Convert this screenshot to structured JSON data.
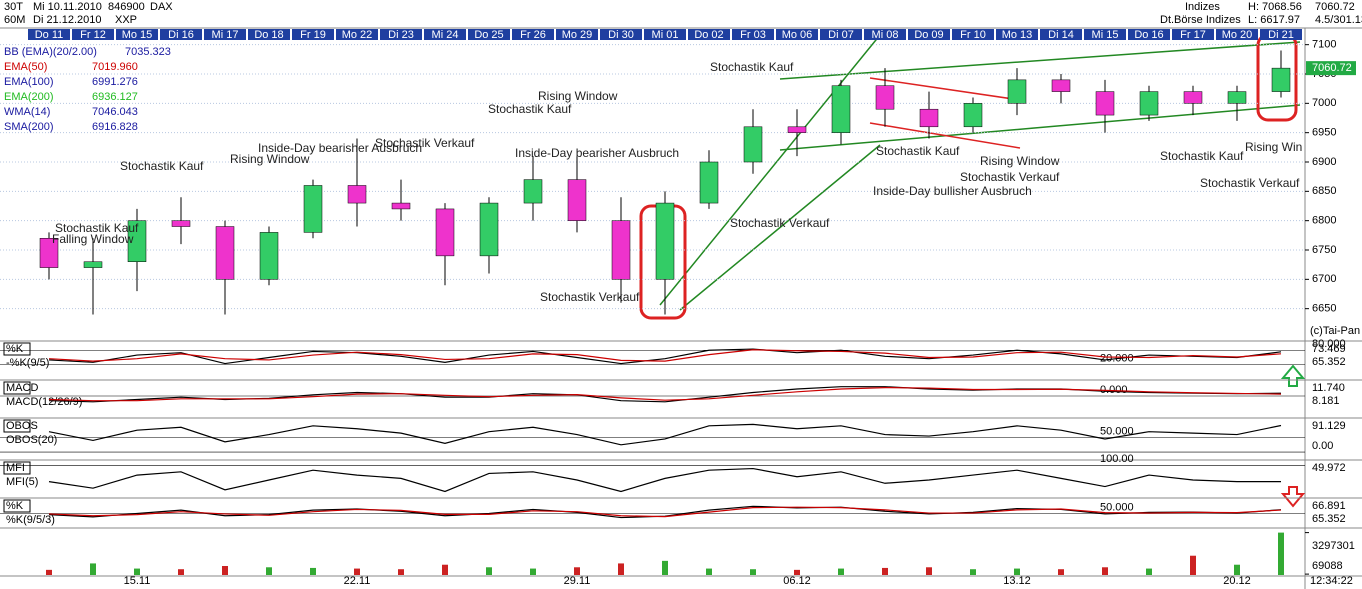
{
  "header": {
    "left": [
      "30T",
      "Mi 10.11.2010",
      "846900",
      "DAX",
      "60M",
      "Di 21.12.2010",
      "XXP"
    ],
    "right": [
      "Indizes",
      "Dt.Börse Indizes",
      "H: 7068.56",
      "L: 6617.97",
      "7060.72",
      "4.5/301.13"
    ],
    "legend": [
      {
        "name": "BB (EMA)(20/2.00)",
        "value": "7035.323",
        "color": "#1a1aa0"
      },
      {
        "name": "EMA(50)",
        "value": "7019.960",
        "color": "#cc0000"
      },
      {
        "name": "EMA(100)",
        "value": "6991.276",
        "color": "#1a1aa0"
      },
      {
        "name": "EMA(200)",
        "value": "6936.127",
        "color": "#22bb22"
      },
      {
        "name": "WMA(14)",
        "value": "7046.043",
        "color": "#1a1aa0"
      },
      {
        "name": "SMA(200)",
        "value": "6916.828",
        "color": "#1a1aa0"
      }
    ],
    "copyright": "(c)Tai-Pan",
    "time": "12:34:22"
  },
  "annotations": [
    "Falling Window",
    "Stochastik Kauf",
    "Stochastik Kauf",
    "Rising Window",
    "Inside-Day bearisher Ausbruch",
    "Stochastik Verkauf",
    "Rising Window",
    "Stochastik Kauf",
    "Inside-Day bearisher Ausbruch",
    "Stochastik Verkauf",
    "Stochastik Kauf",
    "Stochastik Verkauf",
    "Stochastik Kauf",
    "Inside-Day bullisher Ausbruch",
    "Rising Window",
    "Stochastik Verkauf",
    "Stochastik Kauf",
    "Stochastik Verkauf",
    "Rising Win"
  ],
  "chart_data": [
    {
      "type": "candlestick",
      "categories": [
        "Do 11",
        "Fr 12",
        "Mo 15",
        "Di 16",
        "Mi 17",
        "Do 18",
        "Fr 19",
        "Mo 22",
        "Di 23",
        "Mi 24",
        "Do 25",
        "Fr 26",
        "Mo 29",
        "Di 30",
        "Mi 01",
        "Do 02",
        "Fr 03",
        "Mo 06",
        "Di 07",
        "Mi 08",
        "Do 09",
        "Fr 10",
        "Mo 13",
        "Di 14",
        "Mi 15",
        "Do 16",
        "Fr 17",
        "Mo 20",
        "Di 21"
      ],
      "open": [
        6770,
        6720,
        6730,
        6800,
        6790,
        6700,
        6780,
        6860,
        6830,
        6820,
        6740,
        6830,
        6870,
        6800,
        6700,
        6830,
        6900,
        6960,
        6950,
        7030,
        6990,
        6960,
        7000,
        7040,
        7020,
        6980,
        7020,
        7000,
        7020
      ],
      "high": [
        6780,
        6770,
        6820,
        6840,
        6800,
        6790,
        6870,
        6940,
        6870,
        6830,
        6840,
        6910,
        6910,
        6840,
        6850,
        6920,
        6990,
        6990,
        7040,
        7060,
        7020,
        7010,
        7060,
        7050,
        7040,
        7030,
        7030,
        7030,
        7090
      ],
      "low": [
        6700,
        6640,
        6680,
        6760,
        6640,
        6690,
        6770,
        6790,
        6800,
        6690,
        6710,
        6800,
        6780,
        6660,
        6640,
        6820,
        6880,
        6910,
        6930,
        6960,
        6940,
        6950,
        6980,
        7000,
        6950,
        6970,
        6980,
        6970,
        7010
      ],
      "close": [
        6720,
        6730,
        6800,
        6790,
        6700,
        6780,
        6860,
        6830,
        6820,
        6740,
        6830,
        6870,
        6800,
        6700,
        6830,
        6900,
        6960,
        6950,
        7030,
        6990,
        6960,
        7000,
        7040,
        7020,
        6980,
        7020,
        7000,
        7020,
        7060
      ],
      "up_color": "#33cc66",
      "down_color": "#ee33cc",
      "xlabels": [
        "15.11",
        "22.11",
        "29.11",
        "06.12",
        "13.12",
        "20.12"
      ],
      "ylim": [
        6600,
        7125
      ],
      "yticks": [
        6650,
        6700,
        6750,
        6800,
        6850,
        6900,
        6950,
        7000,
        7050,
        7100
      ],
      "last": "7060.72"
    },
    {
      "type": "line",
      "label": "%K",
      "ylim": [
        -10,
        110
      ],
      "yticks": [
        {
          "value": 20,
          "label": "20.000"
        },
        {
          "value": 80,
          "label": "80.000"
        }
      ],
      "last": [
        "73.469",
        "65.352"
      ],
      "series": [
        {
          "name": "-%K(9/5)",
          "color": "#000000",
          "values": [
            40,
            30,
            60,
            70,
            25,
            50,
            75,
            70,
            55,
            30,
            60,
            75,
            50,
            25,
            45,
            80,
            85,
            70,
            80,
            55,
            45,
            60,
            80,
            65,
            40,
            60,
            55,
            50,
            73.469
          ]
        },
        {
          "color": "#cc0000",
          "values": [
            45,
            35,
            45,
            65,
            45,
            40,
            60,
            72,
            62,
            42,
            45,
            65,
            62,
            38,
            35,
            62,
            82,
            78,
            75,
            68,
            50,
            52,
            70,
            72,
            52,
            50,
            58,
            52,
            65.352
          ]
        }
      ]
    },
    {
      "type": "line",
      "label": "MACD",
      "ylim": [
        -60,
        60
      ],
      "yticks": [
        {
          "value": 0,
          "label": "0.000"
        }
      ],
      "last": [
        "11.740",
        "8.181"
      ],
      "series": [
        {
          "name": "MACD(12/26/9)",
          "color": "#000000",
          "values": [
            -20,
            -25,
            -15,
            -5,
            -15,
            -10,
            5,
            15,
            10,
            -5,
            -5,
            10,
            5,
            -20,
            -25,
            -5,
            15,
            30,
            40,
            40,
            30,
            25,
            30,
            30,
            20,
            15,
            12,
            10,
            11.74
          ]
        },
        {
          "color": "#cc0000",
          "values": [
            -15,
            -20,
            -20,
            -12,
            -12,
            -12,
            -3,
            8,
            10,
            3,
            -3,
            3,
            6,
            -8,
            -18,
            -12,
            3,
            18,
            30,
            36,
            34,
            28,
            28,
            29,
            24,
            18,
            14,
            11,
            8.181
          ]
        }
      ]
    },
    {
      "type": "line",
      "label": "OBOS",
      "ylim": [
        -10,
        110
      ],
      "yticks": [
        {
          "value": 50,
          "label": "50.000"
        },
        {
          "value": 0,
          "label": "0.00"
        }
      ],
      "last": [
        "91.129"
      ],
      "series": [
        {
          "name": "OBOS(20)",
          "color": "#000000",
          "values": [
            70,
            40,
            75,
            85,
            35,
            60,
            90,
            80,
            65,
            30,
            70,
            85,
            60,
            25,
            45,
            90,
            95,
            80,
            90,
            60,
            55,
            70,
            90,
            75,
            45,
            70,
            65,
            60,
            91.129
          ]
        }
      ]
    },
    {
      "type": "line",
      "label": "MFI",
      "ylim": [
        0,
        110
      ],
      "yticks": [
        {
          "value": 100,
          "label": "100.00"
        }
      ],
      "last": [
        "49.972"
      ],
      "series": [
        {
          "name": "MFI(5)",
          "color": "#000000",
          "values": [
            50,
            30,
            70,
            80,
            25,
            55,
            85,
            70,
            60,
            20,
            75,
            80,
            55,
            20,
            60,
            85,
            90,
            65,
            80,
            45,
            55,
            70,
            85,
            60,
            35,
            70,
            55,
            50,
            49.972
          ]
        }
      ]
    },
    {
      "type": "line",
      "label": "%K",
      "ylim": [
        -10,
        110
      ],
      "yticks": [
        {
          "value": 50,
          "label": "50.000"
        }
      ],
      "last": [
        "66.891",
        "65.352"
      ],
      "series": [
        {
          "name": "%K(9/5/3)",
          "color": "#000000",
          "values": [
            45,
            35,
            50,
            65,
            40,
            45,
            65,
            70,
            60,
            40,
            50,
            68,
            55,
            32,
            38,
            65,
            82,
            75,
            78,
            60,
            48,
            55,
            72,
            68,
            48,
            55,
            56,
            52,
            66.891
          ]
        },
        {
          "color": "#cc0000",
          "values": [
            48,
            40,
            45,
            58,
            48,
            42,
            58,
            68,
            64,
            46,
            46,
            62,
            58,
            40,
            36,
            56,
            76,
            78,
            76,
            66,
            52,
            52,
            66,
            70,
            54,
            52,
            55,
            54,
            65.352
          ]
        }
      ]
    },
    {
      "type": "bar",
      "ylim": [
        0,
        3500000
      ],
      "yticks": [
        {
          "value": 3297301,
          "label": "3297301"
        },
        {
          "value": 69088,
          "label": "69088"
        }
      ],
      "up_color": "#33aa33",
      "down_color": "#cc2222",
      "values": [
        400000,
        900000,
        500000,
        450000,
        700000,
        600000,
        550000,
        500000,
        450000,
        800000,
        600000,
        500000,
        600000,
        900000,
        1100000,
        500000,
        450000,
        400000,
        500000,
        550000,
        600000,
        450000,
        500000,
        450000,
        600000,
        500000,
        1500000,
        800000,
        3297301
      ]
    }
  ]
}
